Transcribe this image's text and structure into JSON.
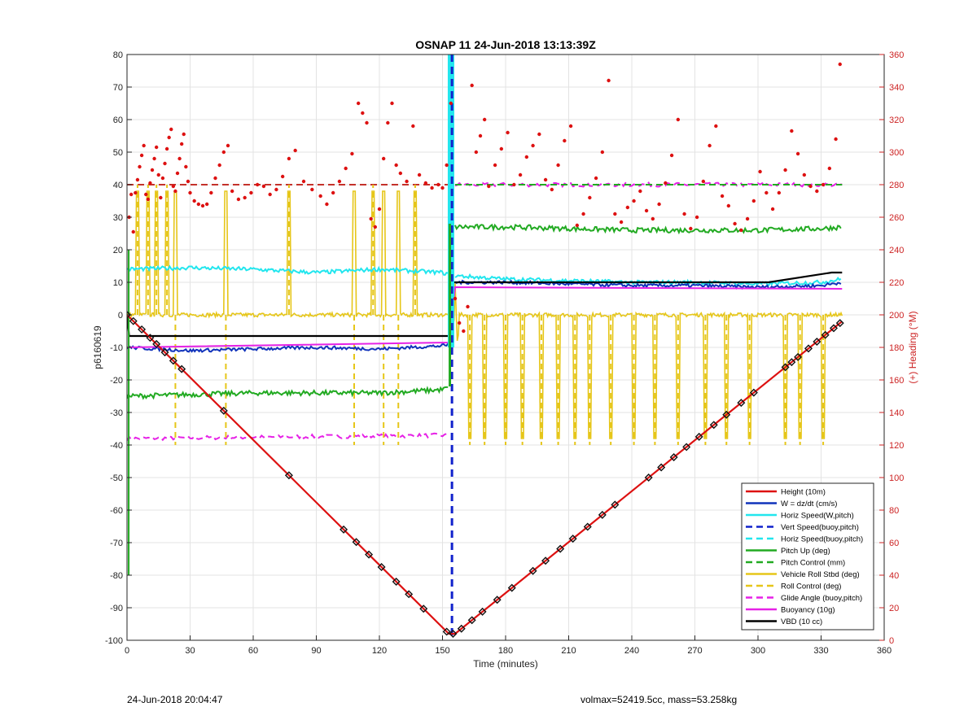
{
  "chart_data": {
    "type": "line",
    "title": "OSNAP 11 24-Jun-2018 13:13:39Z",
    "xlabel": "Time (minutes)",
    "ylabel_left": "p6160619",
    "ylabel_right": "(+) Heading (°M)",
    "xlim": [
      0,
      360
    ],
    "ylim_left": [
      -100,
      80
    ],
    "ylim_right": [
      0,
      360
    ],
    "xticks": [
      0,
      30,
      60,
      90,
      120,
      150,
      180,
      210,
      240,
      270,
      300,
      330,
      360
    ],
    "yticks_left": [
      -100,
      -90,
      -80,
      -70,
      -60,
      -50,
      -40,
      -30,
      -20,
      -10,
      0,
      10,
      20,
      30,
      40,
      50,
      60,
      70,
      80
    ],
    "yticks_right": [
      0,
      20,
      40,
      60,
      80,
      100,
      120,
      140,
      160,
      180,
      200,
      220,
      240,
      260,
      280,
      300,
      320,
      340,
      360
    ],
    "grid": true,
    "legend_position": "bottom-right",
    "legend": [
      {
        "name": "Height (10m)",
        "color": "#dd1111",
        "style": "solid"
      },
      {
        "name": "W = dz/dt (cm/s)",
        "color": "#1133bb",
        "style": "solid"
      },
      {
        "name": "Horiz Speed(W,pitch)",
        "color": "#22e6ee",
        "style": "solid"
      },
      {
        "name": "Vert Speed(buoy,pitch)",
        "color": "#1122cc",
        "style": "dashed"
      },
      {
        "name": "Horiz Speed(buoy,pitch)",
        "color": "#22e6ee",
        "style": "dashed"
      },
      {
        "name": "Pitch Up (deg)",
        "color": "#22aa22",
        "style": "solid"
      },
      {
        "name": "Pitch Control (mm)",
        "color": "#22aa22",
        "style": "dashed"
      },
      {
        "name": "Vehicle Roll Stbd (deg)",
        "color": "#e6c619",
        "style": "solid"
      },
      {
        "name": "Roll Control (deg)",
        "color": "#e6c619",
        "style": "dashed"
      },
      {
        "name": "Glide Angle (buoy,pitch)",
        "color": "#e622e6",
        "style": "dashed"
      },
      {
        "name": "Buoyancy (10g)",
        "color": "#e622e6",
        "style": "solid"
      },
      {
        "name": "VBD (10 cc)",
        "color": "#000000",
        "style": "solid"
      }
    ],
    "series": [
      {
        "key": "height",
        "x": [
          0,
          153,
          156,
          340
        ],
        "y": [
          0,
          -98,
          -98,
          -2
        ]
      },
      {
        "key": "w",
        "x": [
          0,
          30,
          60,
          90,
          120,
          150,
          154,
          156,
          180,
          210,
          240,
          270,
          300,
          330,
          340
        ],
        "y": [
          -10,
          -11,
          -10.5,
          -10,
          -10.5,
          -9.5,
          -9,
          10,
          10,
          9.5,
          9,
          9,
          8.5,
          9,
          10
        ]
      },
      {
        "key": "horiz_speed",
        "x": [
          0,
          30,
          60,
          90,
          120,
          150,
          154,
          156,
          180,
          210,
          240,
          270,
          300,
          330,
          340
        ],
        "y": [
          14,
          14.5,
          14,
          13,
          14,
          13,
          12,
          12,
          11,
          10.5,
          10,
          10,
          9.5,
          10,
          11
        ]
      },
      {
        "key": "pitch_up",
        "x": [
          0,
          30,
          60,
          90,
          120,
          150,
          154,
          156,
          180,
          210,
          240,
          270,
          300,
          330,
          340
        ],
        "y": [
          -25,
          -24.5,
          -24,
          -24,
          -24,
          -23,
          -22,
          27,
          27,
          26.5,
          26,
          26,
          26,
          26.5,
          27
        ]
      },
      {
        "key": "buoyancy",
        "x": [
          0,
          153,
          156,
          340
        ],
        "y": [
          -10,
          -8.5,
          8.5,
          8
        ]
      },
      {
        "key": "glide_angle",
        "x": [
          0,
          153,
          156,
          340
        ],
        "y": [
          -38,
          -37,
          40,
          40
        ]
      },
      {
        "key": "vbd",
        "x": [
          0,
          1,
          153,
          155,
          305,
          335,
          340
        ],
        "y": [
          0,
          -6.5,
          -6.5,
          10,
          10,
          13,
          13
        ]
      },
      {
        "key": "pitch_control",
        "x": [
          0,
          153,
          156,
          340
        ],
        "y": [
          40,
          40,
          40,
          40
        ]
      },
      {
        "key": "vehicle_roll",
        "x": [
          0,
          340
        ],
        "y": [
          0,
          0
        ]
      }
    ],
    "height_markers_x": [
      0,
      3,
      7,
      11,
      14,
      18,
      22,
      26,
      46,
      77,
      103,
      109,
      115,
      121,
      128,
      134,
      141,
      152,
      155,
      159,
      164,
      169,
      176,
      183,
      193,
      199,
      206,
      212,
      219,
      226,
      232,
      248,
      254,
      260,
      266,
      272,
      279,
      285,
      292,
      298,
      313,
      316,
      319,
      324,
      328,
      332,
      336,
      339
    ],
    "roll_spikes_x": [
      5,
      10,
      14,
      19,
      23,
      47,
      77,
      108,
      117,
      122,
      129,
      137,
      163,
      170,
      180,
      188,
      197,
      205,
      213,
      220,
      230,
      241,
      251,
      262,
      275,
      285,
      296,
      313,
      320,
      331
    ],
    "heading_points": [
      [
        1,
        260
      ],
      [
        2,
        274
      ],
      [
        3,
        251
      ],
      [
        4,
        275
      ],
      [
        5,
        283
      ],
      [
        6,
        291
      ],
      [
        7,
        298
      ],
      [
        8,
        304
      ],
      [
        9,
        274
      ],
      [
        10,
        271
      ],
      [
        11,
        281
      ],
      [
        12,
        289
      ],
      [
        13,
        296
      ],
      [
        14,
        303
      ],
      [
        15,
        286
      ],
      [
        16,
        272
      ],
      [
        17,
        284
      ],
      [
        18,
        293
      ],
      [
        19,
        302
      ],
      [
        20,
        309
      ],
      [
        21,
        314
      ],
      [
        22,
        279
      ],
      [
        23,
        276
      ],
      [
        24,
        287
      ],
      [
        25,
        296
      ],
      [
        26,
        305
      ],
      [
        27,
        311
      ],
      [
        28,
        291
      ],
      [
        29,
        282
      ],
      [
        30,
        275
      ],
      [
        32,
        270
      ],
      [
        34,
        268
      ],
      [
        36,
        267
      ],
      [
        38,
        268
      ],
      [
        40,
        275
      ],
      [
        42,
        284
      ],
      [
        44,
        292
      ],
      [
        46,
        300
      ],
      [
        48,
        304
      ],
      [
        50,
        276
      ],
      [
        53,
        271
      ],
      [
        56,
        272
      ],
      [
        59,
        275
      ],
      [
        62,
        280
      ],
      [
        65,
        279
      ],
      [
        68,
        274
      ],
      [
        71,
        277
      ],
      [
        74,
        285
      ],
      [
        77,
        296
      ],
      [
        80,
        301
      ],
      [
        84,
        282
      ],
      [
        88,
        277
      ],
      [
        92,
        273
      ],
      [
        95,
        268
      ],
      [
        98,
        275
      ],
      [
        101,
        282
      ],
      [
        104,
        290
      ],
      [
        107,
        299
      ],
      [
        110,
        330
      ],
      [
        112,
        324
      ],
      [
        114,
        318
      ],
      [
        116,
        259
      ],
      [
        118,
        254
      ],
      [
        120,
        265
      ],
      [
        122,
        296
      ],
      [
        124,
        318
      ],
      [
        126,
        330
      ],
      [
        128,
        292
      ],
      [
        130,
        287
      ],
      [
        133,
        282
      ],
      [
        136,
        316
      ],
      [
        139,
        286
      ],
      [
        142,
        281
      ],
      [
        145,
        278
      ],
      [
        148,
        280
      ],
      [
        150,
        278
      ],
      [
        152,
        292
      ],
      [
        154,
        330
      ],
      [
        156,
        210
      ],
      [
        158,
        195
      ],
      [
        160,
        190
      ],
      [
        162,
        205
      ],
      [
        164,
        341
      ],
      [
        166,
        300
      ],
      [
        168,
        310
      ],
      [
        170,
        320
      ],
      [
        172,
        279
      ],
      [
        175,
        292
      ],
      [
        178,
        302
      ],
      [
        181,
        312
      ],
      [
        184,
        280
      ],
      [
        187,
        286
      ],
      [
        190,
        297
      ],
      [
        193,
        304
      ],
      [
        196,
        311
      ],
      [
        199,
        283
      ],
      [
        202,
        277
      ],
      [
        205,
        292
      ],
      [
        208,
        307
      ],
      [
        211,
        316
      ],
      [
        214,
        255
      ],
      [
        217,
        262
      ],
      [
        220,
        272
      ],
      [
        223,
        284
      ],
      [
        226,
        300
      ],
      [
        229,
        344
      ],
      [
        232,
        262
      ],
      [
        235,
        257
      ],
      [
        238,
        266
      ],
      [
        241,
        270
      ],
      [
        244,
        276
      ],
      [
        247,
        264
      ],
      [
        250,
        259
      ],
      [
        253,
        268
      ],
      [
        256,
        281
      ],
      [
        259,
        298
      ],
      [
        262,
        320
      ],
      [
        265,
        262
      ],
      [
        268,
        253
      ],
      [
        271,
        260
      ],
      [
        274,
        282
      ],
      [
        277,
        304
      ],
      [
        280,
        316
      ],
      [
        283,
        273
      ],
      [
        286,
        267
      ],
      [
        289,
        256
      ],
      [
        292,
        252
      ],
      [
        295,
        259
      ],
      [
        298,
        270
      ],
      [
        301,
        288
      ],
      [
        304,
        275
      ],
      [
        307,
        265
      ],
      [
        310,
        275
      ],
      [
        313,
        289
      ],
      [
        316,
        313
      ],
      [
        319,
        299
      ],
      [
        322,
        286
      ],
      [
        325,
        279
      ],
      [
        328,
        276
      ],
      [
        331,
        280
      ],
      [
        334,
        290
      ],
      [
        337,
        308
      ],
      [
        339,
        354
      ]
    ]
  },
  "footer": {
    "left": "24-Jun-2018 20:04:47",
    "right": "volmax=52419.5cc, mass=53.258kg"
  }
}
